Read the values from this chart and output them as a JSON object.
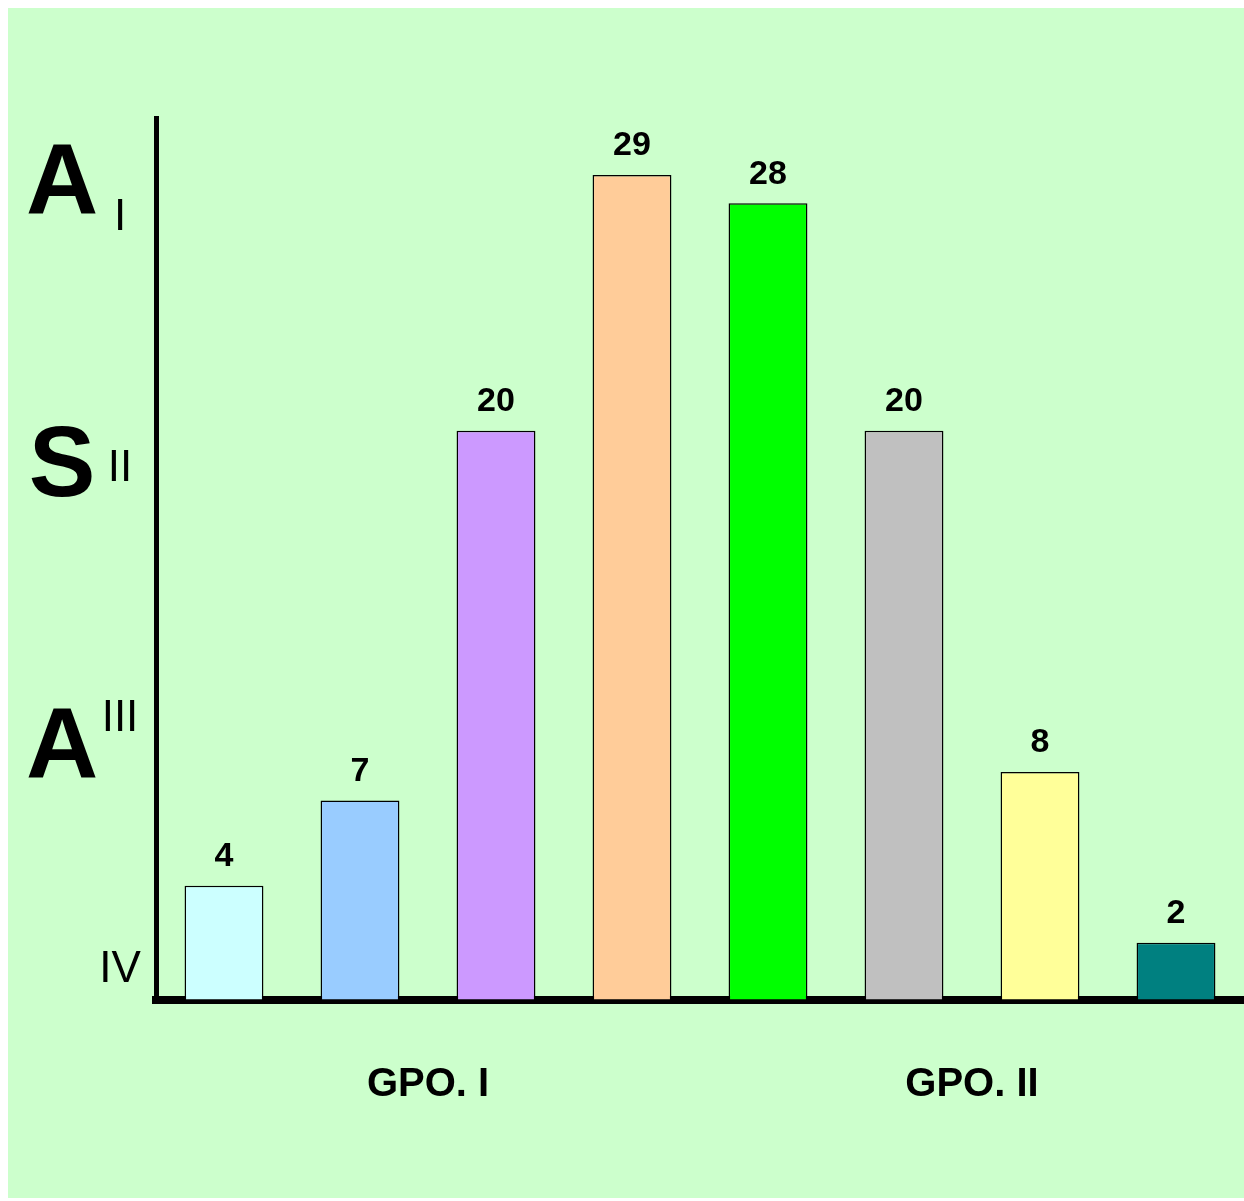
{
  "chart_data": {
    "type": "bar",
    "ylabel": "ASA",
    "categories": [
      null,
      null,
      null,
      null,
      null,
      null,
      null,
      null
    ],
    "values": [
      4,
      7,
      20,
      29,
      28,
      20,
      8,
      2
    ],
    "colors": [
      "#ccffff",
      "#99ccff",
      "#cc99ff",
      "#ffcc99",
      "#00ff00",
      "#c0c0c0",
      "#ffff99",
      "#008080"
    ],
    "ylim": [
      0,
      31
    ],
    "data_labels": true,
    "annotations": [
      "I",
      "II",
      "III",
      "IV",
      "GPO. I",
      "GPO. II"
    ]
  }
}
